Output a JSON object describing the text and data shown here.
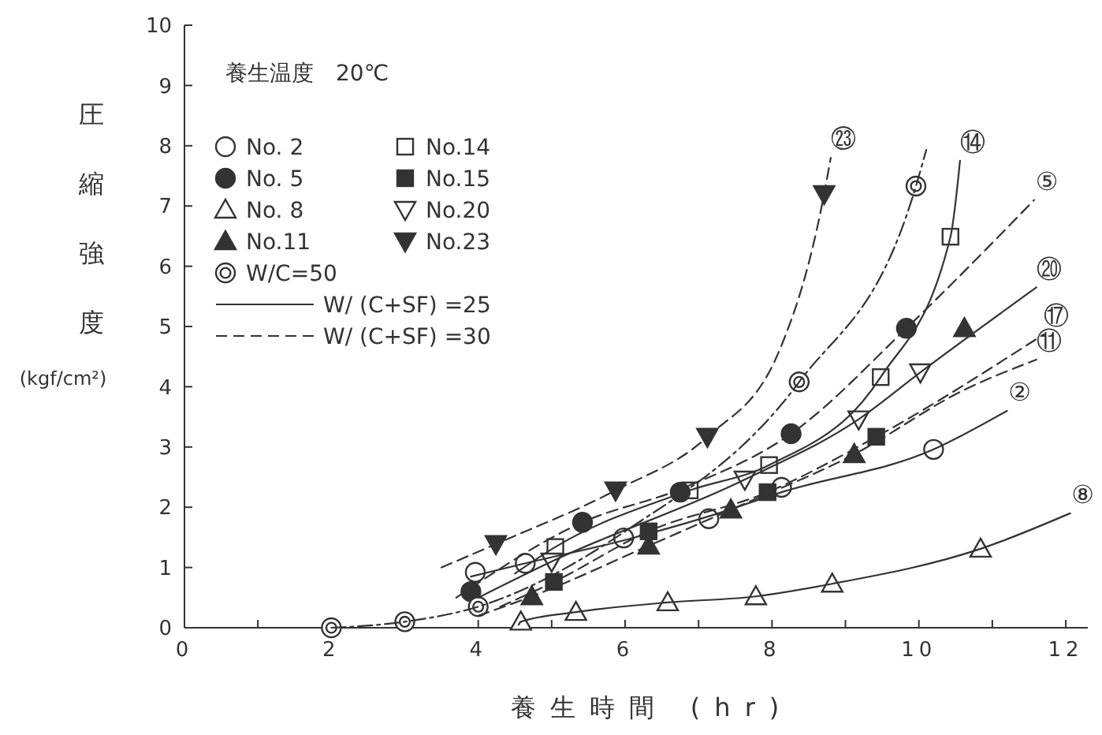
{
  "chart_data": {
    "type": "scatter",
    "xlabel": "養生時間 (hr)",
    "ylabel": "圧縮強度 (kgf/cm²)",
    "annotations": [
      "養生温度　20℃",
      {
        "text": "㉓",
        "x": 8.8,
        "y": 7.8
      },
      {
        "text": "⑭",
        "x": 10.56,
        "y": 7.75
      },
      {
        "text": "⑤",
        "x": 11.57,
        "y": 7.1
      },
      {
        "text": "⑳",
        "x": 11.6,
        "y": 5.65
      },
      {
        "text": "⑰",
        "x": 11.7,
        "y": 4.87
      },
      {
        "text": "⑪",
        "x": 11.6,
        "y": 4.45
      },
      {
        "text": "②",
        "x": 11.2,
        "y": 3.6
      },
      {
        "text": "⑧",
        "x": 12.06,
        "y": 1.9
      }
    ],
    "xlim": [
      0,
      12.3
    ],
    "ylim": [
      0,
      10
    ],
    "xticks": [
      0,
      {
        "value": 1,
        "label": null
      },
      2,
      {
        "value": 3,
        "label": null
      },
      4,
      {
        "value": 5,
        "label": null
      },
      6,
      {
        "value": 7,
        "label": null
      },
      8,
      {
        "value": 9,
        "label": null
      },
      10,
      {
        "value": 11,
        "label": null
      },
      12
    ],
    "yticks": [
      0,
      1,
      2,
      3,
      4,
      5,
      6,
      7,
      8,
      9,
      10
    ],
    "grid": false,
    "legend": "top left",
    "series": [
      {
        "name": "No. 2",
        "color": "#ffffff",
        "marker": "circle",
        "x": [
          3.96,
          4.64,
          5.98,
          7.14,
          8.13,
          10.2
        ],
        "values": [
          0.92,
          1.07,
          1.49,
          1.81,
          2.33,
          2.96
        ]
      },
      {
        "name": "No.14",
        "color": "#ffffff",
        "marker": "square",
        "x": [
          5.05,
          6.88,
          7.96,
          9.48,
          10.43
        ],
        "values": [
          1.34,
          2.28,
          2.7,
          4.16,
          6.49
        ]
      },
      {
        "name": "No. 5",
        "color": "#333333",
        "marker": "circle",
        "x": [
          3.9,
          5.42,
          6.75,
          8.26,
          9.83
        ],
        "values": [
          0.6,
          1.75,
          2.25,
          3.22,
          4.97
        ]
      },
      {
        "name": "No.15",
        "color": "#333333",
        "marker": "square",
        "x": [
          5.03,
          6.32,
          7.94,
          9.42
        ],
        "values": [
          0.76,
          1.6,
          2.25,
          3.17
        ]
      },
      {
        "name": "No. 8",
        "color": "#ffffff",
        "marker": "triangle",
        "x": [
          4.58,
          5.33,
          6.58,
          7.78,
          8.82,
          10.84
        ],
        "values": [
          0.1,
          0.26,
          0.42,
          0.52,
          0.73,
          1.31
        ]
      },
      {
        "name": "No.20",
        "color": "#ffffff",
        "marker": "triangle-down",
        "x": [
          5.0,
          7.63,
          9.18,
          10.02
        ],
        "values": [
          1.1,
          2.46,
          3.46,
          4.24
        ]
      },
      {
        "name": "No.11",
        "color": "#333333",
        "marker": "triangle",
        "x": [
          4.73,
          6.32,
          7.44,
          9.12,
          10.62
        ],
        "values": [
          0.52,
          1.36,
          1.96,
          2.88,
          4.97
        ]
      },
      {
        "name": "No.23",
        "color": "#333333",
        "marker": "triangle-down",
        "x": [
          4.24,
          5.87,
          7.12,
          8.71
        ],
        "values": [
          1.39,
          2.28,
          3.17,
          7.2
        ]
      },
      {
        "name": "W/C=50",
        "color": "#ffffff",
        "marker": "double-circle",
        "x": [
          2,
          3,
          4,
          8.37,
          9.96
        ],
        "values": [
          0,
          0.1,
          0.35,
          4.08,
          7.33
        ]
      },
      {
        "name": "W/ (C+SF) =25",
        "type": "line",
        "color": "#333333",
        "line_style": "solid",
        "x": [
          3.9,
          4.64,
          5.98,
          7.14,
          8.13,
          10.2,
          11.2
        ],
        "values": [
          0.85,
          1.07,
          1.45,
          1.85,
          2.25,
          2.96,
          3.6
        ]
      },
      {
        "name": "W/ (C+SF) =30",
        "type": "line",
        "color": "#333333",
        "line_style": "dashed",
        "x": [
          3.7,
          5.42,
          6.75,
          8.26,
          9.83,
          11.57
        ],
        "values": [
          0.5,
          1.75,
          2.3,
          3.22,
          4.97,
          7.1
        ]
      },
      {
        "type": "line",
        "color": "#333333",
        "line_style": "solid",
        "x": [
          4.5,
          5.05,
          6.88,
          7.96,
          9.48,
          10.43,
          10.56
        ],
        "values": [
          0.9,
          1.34,
          2.28,
          2.7,
          4.16,
          6.49,
          7.75
        ]
      },
      {
        "type": "line",
        "color": "#333333",
        "line_style": "dashed",
        "x": [
          4.3,
          5.03,
          6.32,
          7.94,
          9.42,
          11.7
        ],
        "values": [
          0.35,
          0.76,
          1.6,
          2.25,
          3.17,
          4.87
        ]
      },
      {
        "type": "line",
        "color": "#333333",
        "line_style": "solid",
        "x": [
          4.55,
          4.58,
          5.33,
          6.58,
          7.78,
          8.82,
          10.84,
          12.06
        ],
        "values": [
          0.05,
          0.1,
          0.26,
          0.42,
          0.52,
          0.73,
          1.31,
          1.9
        ]
      },
      {
        "type": "line",
        "color": "#333333",
        "line_style": "solid",
        "x": [
          4.0,
          5.0,
          7.63,
          9.18,
          10.02,
          11.6
        ],
        "values": [
          0.5,
          1.1,
          2.46,
          3.46,
          4.24,
          5.65
        ]
      },
      {
        "type": "line",
        "color": "#333333",
        "line_style": "dashed",
        "x": [
          4.0,
          4.73,
          6.32,
          7.44,
          9.12,
          10.62,
          11.6
        ],
        "values": [
          0.2,
          0.52,
          1.36,
          1.96,
          2.88,
          3.95,
          4.45
        ]
      },
      {
        "type": "line",
        "color": "#333333",
        "line_style": "dashed",
        "x": [
          3.5,
          4.24,
          5.87,
          7.12,
          8.1,
          8.71,
          8.8
        ],
        "values": [
          1.0,
          1.39,
          2.28,
          3.17,
          4.6,
          7.2,
          7.8
        ]
      },
      {
        "type": "line",
        "color": "#333333",
        "line_style": "dashdot",
        "x": [
          2,
          3,
          4,
          6,
          8.37,
          9.96,
          10.1
        ],
        "values": [
          0,
          0.1,
          0.35,
          1.6,
          4.08,
          7.33,
          7.93
        ]
      }
    ]
  }
}
